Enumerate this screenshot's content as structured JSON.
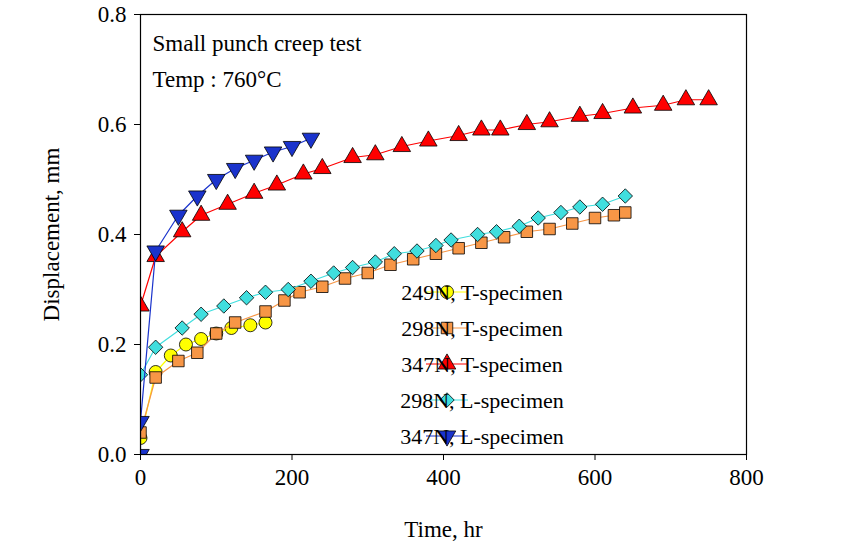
{
  "chart_data": {
    "type": "line",
    "annotations": [
      "Small punch creep test",
      "Temp : 760°C"
    ],
    "x_label": "Time, hr",
    "y_label": "Displacement, mm",
    "xlim": [
      0,
      800
    ],
    "xticks": [
      0,
      200,
      400,
      600,
      800
    ],
    "ylim": [
      0,
      0.8
    ],
    "yticks": [
      {
        "value": 0,
        "label": "0.0"
      },
      0.2,
      0.4,
      0.6,
      0.8
    ],
    "grid": false,
    "legend": "lower right",
    "series": [
      {
        "name": "249N, T-specimen",
        "color": "#ffff00",
        "marker": "circle",
        "x": [
          0,
          20,
          40,
          60,
          80,
          100,
          120,
          145,
          165
        ],
        "values": [
          0.03,
          0.15,
          0.18,
          0.2,
          0.21,
          0.22,
          0.23,
          0.235,
          0.24
        ]
      },
      {
        "name": "298N, T-specimen",
        "color": "#f79646",
        "marker": "square",
        "x": [
          0,
          20,
          50,
          75,
          100,
          125,
          165,
          190,
          210,
          240,
          270,
          300,
          330,
          360,
          390,
          420,
          450,
          480,
          510,
          540,
          570,
          600,
          625,
          640
        ],
        "values": [
          0.04,
          0.14,
          0.17,
          0.185,
          0.22,
          0.24,
          0.26,
          0.28,
          0.295,
          0.305,
          0.32,
          0.33,
          0.345,
          0.355,
          0.365,
          0.375,
          0.385,
          0.395,
          0.405,
          0.41,
          0.42,
          0.43,
          0.435,
          0.44
        ]
      },
      {
        "name": "347N, T-specimen",
        "color": "#ff0000",
        "marker": "triangle",
        "x": [
          0,
          20,
          55,
          80,
          115,
          150,
          180,
          215,
          240,
          280,
          310,
          345,
          380,
          420,
          450,
          475,
          510,
          540,
          580,
          610,
          650,
          690,
          720,
          750
        ],
        "values": [
          0.27,
          0.36,
          0.405,
          0.435,
          0.455,
          0.475,
          0.49,
          0.51,
          0.52,
          0.54,
          0.545,
          0.56,
          0.57,
          0.58,
          0.59,
          0.59,
          0.6,
          0.605,
          0.615,
          0.62,
          0.63,
          0.635,
          0.645,
          0.645
        ]
      },
      {
        "name": "298N, L-specimen",
        "color": "#40dede",
        "marker": "diamond",
        "x": [
          0,
          20,
          55,
          80,
          110,
          140,
          165,
          195,
          225,
          255,
          280,
          310,
          335,
          365,
          390,
          410,
          445,
          470,
          500,
          525,
          555,
          580,
          610,
          640
        ],
        "values": [
          0.145,
          0.195,
          0.23,
          0.255,
          0.27,
          0.285,
          0.295,
          0.3,
          0.315,
          0.33,
          0.34,
          0.35,
          0.365,
          0.37,
          0.38,
          0.39,
          0.4,
          0.405,
          0.415,
          0.43,
          0.44,
          0.45,
          0.455,
          0.47
        ]
      },
      {
        "name": "347N, L-specimen",
        "color": "#1a33cc",
        "marker": "triangle-down",
        "x": [
          0,
          0,
          20,
          50,
          75,
          100,
          125,
          150,
          175,
          200,
          225
        ],
        "values": [
          0,
          0.06,
          0.37,
          0.435,
          0.47,
          0.5,
          0.52,
          0.535,
          0.55,
          0.56,
          0.575
        ]
      }
    ]
  }
}
